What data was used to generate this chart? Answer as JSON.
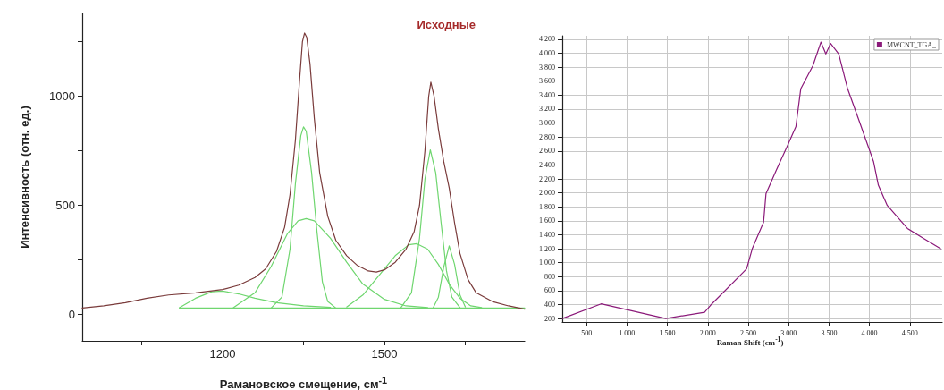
{
  "chart_data": [
    {
      "type": "line",
      "xlabel": "Рамановское смещение, см$^{-1}$",
      "ylabel": "Интенсивность (отн. ед.)",
      "annotations": [
        "Исходные"
      ],
      "xlim": [
        940,
        1760
      ],
      "ylim": [
        -120,
        1380
      ],
      "xticks": [
        {
          "value": 1050,
          "label": null
        },
        1200,
        {
          "value": 1350,
          "label": null
        },
        1500,
        {
          "value": 1650,
          "label": null
        }
      ],
      "yticks": [
        0,
        {
          "value": 250,
          "label": null
        },
        500,
        {
          "value": 750,
          "label": null
        },
        1000,
        {
          "value": 1250,
          "label": null
        }
      ],
      "grid": false,
      "legend": false,
      "series": [
        {
          "color": "#6fd66f",
          "x": [
            1120,
            1760
          ],
          "values": [
            30,
            30
          ]
        },
        {
          "color": "#6fd66f",
          "x": [
            1120,
            1150,
            1180,
            1200,
            1230,
            1260,
            1300,
            1350,
            1400
          ],
          "values": [
            32,
            75,
            105,
            108,
            95,
            75,
            55,
            40,
            33
          ]
        },
        {
          "color": "#6fd66f",
          "x": [
            1290,
            1310,
            1325,
            1335,
            1345,
            1350,
            1355,
            1365,
            1375,
            1385,
            1395,
            1410
          ],
          "values": [
            30,
            80,
            300,
            600,
            820,
            860,
            840,
            650,
            380,
            150,
            60,
            30
          ]
        },
        {
          "color": "#6fd66f",
          "x": [
            1220,
            1260,
            1290,
            1320,
            1340,
            1355,
            1370,
            1400,
            1430,
            1460,
            1500,
            1540,
            1580
          ],
          "values": [
            32,
            100,
            220,
            370,
            430,
            440,
            430,
            350,
            240,
            140,
            70,
            40,
            32
          ]
        },
        {
          "color": "#6fd66f",
          "x": [
            1430,
            1460,
            1490,
            1520,
            1545,
            1560,
            1580,
            1600,
            1620,
            1640,
            1660,
            1680
          ],
          "values": [
            35,
            90,
            180,
            270,
            320,
            325,
            300,
            230,
            140,
            75,
            40,
            32
          ]
        },
        {
          "color": "#6fd66f",
          "x": [
            1530,
            1550,
            1565,
            1575,
            1585,
            1595,
            1605,
            1615,
            1625,
            1640
          ],
          "values": [
            30,
            100,
            350,
            620,
            755,
            650,
            420,
            200,
            80,
            32
          ]
        },
        {
          "color": "#6fd66f",
          "x": [
            1590,
            1600,
            1610,
            1620,
            1630,
            1640,
            1650
          ],
          "values": [
            30,
            80,
            220,
            315,
            230,
            90,
            35
          ]
        },
        {
          "color": "#7a3b3b",
          "x": [
            940,
            980,
            1020,
            1060,
            1100,
            1150,
            1200,
            1230,
            1260,
            1280,
            1300,
            1315,
            1325,
            1335,
            1342,
            1348,
            1352,
            1356,
            1362,
            1370,
            1380,
            1395,
            1410,
            1430,
            1450,
            1470,
            1485,
            1500,
            1520,
            1540,
            1555,
            1565,
            1575,
            1582,
            1586,
            1592,
            1600,
            1610,
            1620,
            1630,
            1640,
            1655,
            1670,
            1700,
            1730,
            1760
          ],
          "values": [
            30,
            40,
            55,
            75,
            90,
            100,
            115,
            135,
            170,
            210,
            290,
            400,
            550,
            800,
            1050,
            1250,
            1290,
            1270,
            1150,
            900,
            650,
            450,
            340,
            270,
            225,
            200,
            195,
            205,
            240,
            300,
            380,
            500,
            750,
            1000,
            1065,
            1000,
            850,
            700,
            580,
            420,
            280,
            160,
            100,
            60,
            40,
            25
          ]
        }
      ]
    },
    {
      "type": "line",
      "xlabel": "Raman Shift (cm$^{-1}$)",
      "xlim": [
        200,
        4900
      ],
      "ylim": [
        150,
        4250
      ],
      "xticks": [
        500,
        {
          "value": 1000,
          "label": "1 000"
        },
        {
          "value": 1500,
          "label": "1 500"
        },
        {
          "value": 2000,
          "label": "2 000"
        },
        {
          "value": 2500,
          "label": "2 500"
        },
        {
          "value": 3000,
          "label": "3 000"
        },
        {
          "value": 3500,
          "label": "3 500"
        },
        {
          "value": 4000,
          "label": "4 000"
        },
        {
          "value": 4500,
          "label": "4 500"
        }
      ],
      "yticks": [
        200,
        400,
        600,
        800,
        {
          "value": 1000,
          "label": "1 000"
        },
        {
          "value": 1200,
          "label": "1 200"
        },
        {
          "value": 1400,
          "label": "1 400"
        },
        {
          "value": 1600,
          "label": "1 600"
        },
        {
          "value": 1800,
          "label": "1 800"
        },
        {
          "value": 2000,
          "label": "2 000"
        },
        {
          "value": 2200,
          "label": "2 200"
        },
        {
          "value": 2400,
          "label": "2 400"
        },
        {
          "value": 2600,
          "label": "2 600"
        },
        {
          "value": 2800,
          "label": "2 800"
        },
        {
          "value": 3000,
          "label": "3 000"
        },
        {
          "value": 3200,
          "label": "3 200"
        },
        {
          "value": 3400,
          "label": "3 400"
        },
        {
          "value": 3600,
          "label": "3 600"
        },
        {
          "value": 3800,
          "label": "3 800"
        },
        {
          "value": 4000,
          "label": "4 000"
        },
        {
          "value": 4200,
          "label": "4 200"
        }
      ],
      "grid": true,
      "legend": "top right",
      "series": [
        {
          "name": "MWCNT_TGA_",
          "color": "#8b1a7a",
          "x": [
            200,
            680,
            1480,
            1960,
            2050,
            2480,
            2550,
            2690,
            2720,
            2850,
            2980,
            3090,
            3150,
            3300,
            3400,
            3460,
            3520,
            3620,
            3730,
            3870,
            4050,
            4110,
            4220,
            4470,
            4650,
            4880
          ],
          "values": [
            200,
            410,
            200,
            290,
            410,
            910,
            1200,
            1580,
            1990,
            2330,
            2660,
            2950,
            3490,
            3820,
            4160,
            3990,
            4140,
            3990,
            3490,
            3040,
            2450,
            2110,
            1820,
            1490,
            1360,
            1200
          ]
        }
      ]
    }
  ]
}
